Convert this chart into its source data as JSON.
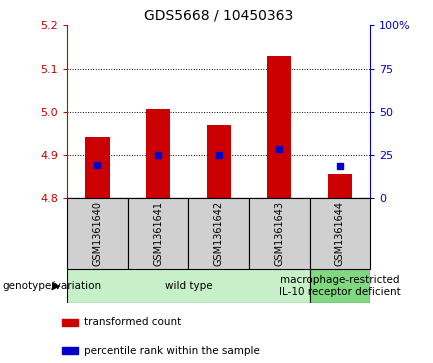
{
  "title": "GDS5668 / 10450363",
  "samples": [
    "GSM1361640",
    "GSM1361641",
    "GSM1361642",
    "GSM1361643",
    "GSM1361644"
  ],
  "bar_bottoms": [
    4.8,
    4.8,
    4.8,
    4.8,
    4.8
  ],
  "bar_tops": [
    4.94,
    5.005,
    4.97,
    5.13,
    4.855
  ],
  "percentile_values": [
    4.876,
    4.9,
    4.9,
    4.913,
    4.873
  ],
  "ylim_left": [
    4.8,
    5.2
  ],
  "ylim_right": [
    0,
    100
  ],
  "yticks_left": [
    4.8,
    4.9,
    5.0,
    5.1,
    5.2
  ],
  "yticks_right": [
    0,
    25,
    50,
    75,
    100
  ],
  "ytick_labels_right": [
    "0",
    "25",
    "50",
    "75",
    "100%"
  ],
  "grid_values": [
    4.9,
    5.0,
    5.1
  ],
  "bar_color": "#cc0000",
  "percentile_color": "#0000cc",
  "sample_box_color": "#d0d0d0",
  "group_colors": [
    "#c8f0c8",
    "#80d880"
  ],
  "group_labels": [
    "wild type",
    "macrophage-restricted\nIL-10 receptor deficient"
  ],
  "group_indices": [
    [
      0,
      1,
      2,
      3
    ],
    [
      4
    ]
  ],
  "legend_items": [
    {
      "label": "transformed count",
      "color": "#cc0000"
    },
    {
      "label": "percentile rank within the sample",
      "color": "#0000cc"
    }
  ],
  "genotype_label": "genotype/variation",
  "left_axis_color": "#cc0000",
  "right_axis_color": "#0000cc",
  "bar_width": 0.4,
  "title_fontsize": 10,
  "tick_fontsize": 8,
  "sample_fontsize": 7,
  "group_fontsize": 7.5,
  "legend_fontsize": 7.5,
  "genotype_fontsize": 7.5
}
